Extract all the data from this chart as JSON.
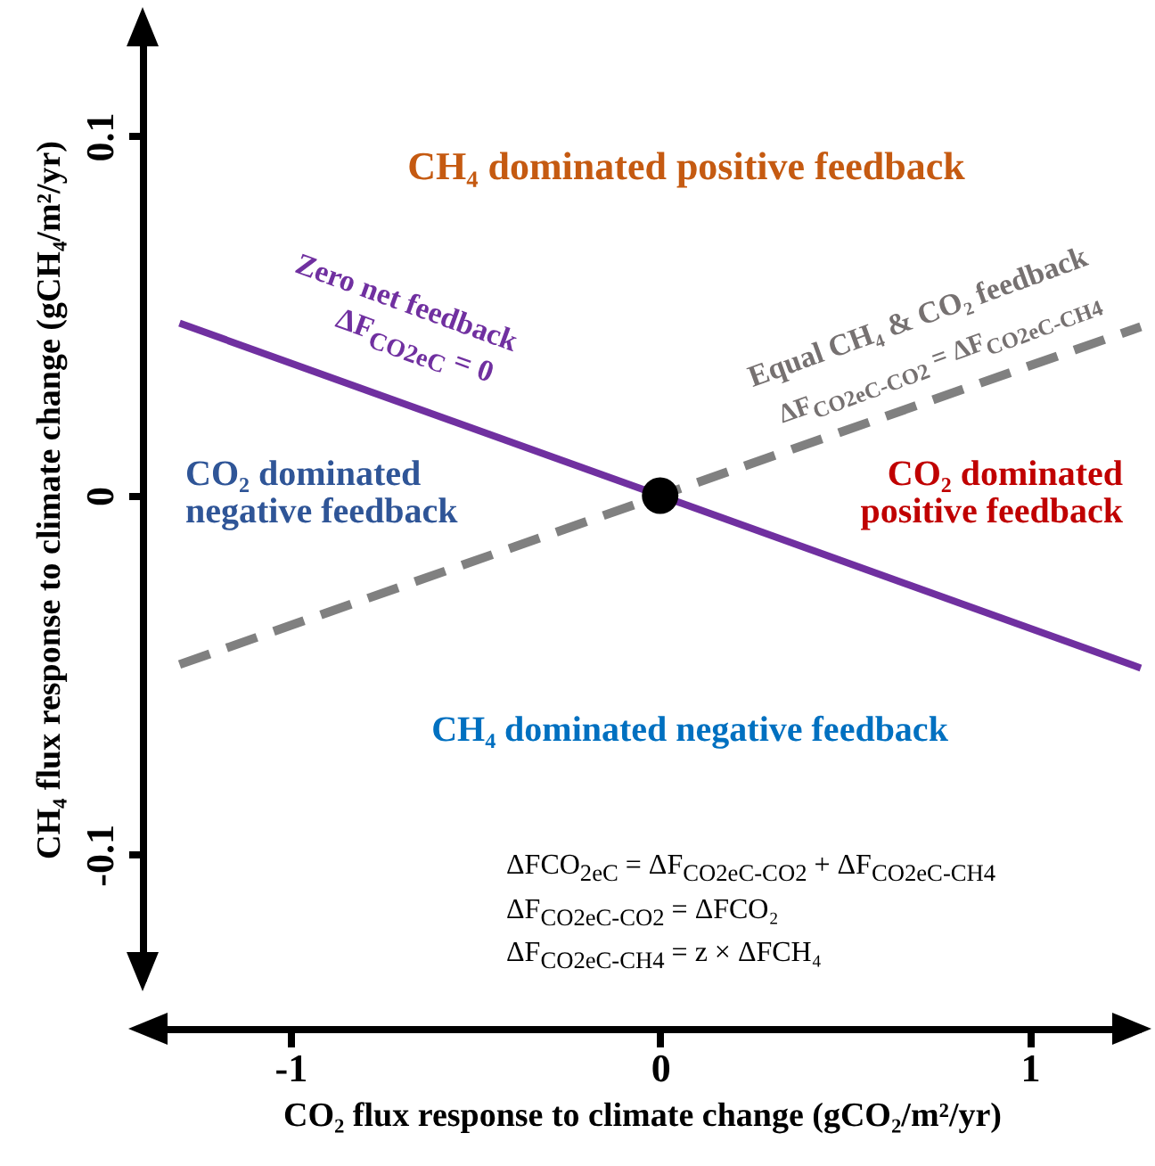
{
  "chart_data": {
    "type": "line",
    "xlabel": "CO₂ flux response to climate change (gCO₂/m²/yr)",
    "ylabel": "CH₄ flux response to climate change (gCH₄/m²/yr)",
    "xlim": [
      -1.4,
      1.3
    ],
    "ylim": [
      -0.135,
      0.133
    ],
    "xticks": [
      -1,
      0,
      1
    ],
    "yticks": [
      -0.1,
      0,
      0.1
    ],
    "grid": false,
    "annotations": [
      "CH₄ dominated positive feedback",
      "Zero net feedback",
      "ΔF$_{CO2eC}$ = 0",
      "Equal CH₄ & CO₂ feedback",
      "ΔF$_{CO2eC-CO2}$ = ΔF$_{CO2eC-CH4}$",
      "CO₂ dominated negative feedback",
      "CO₂ dominated positive feedback",
      "CH₄ dominated negative feedback",
      "ΔFCO$_{2eC}$ = ΔF$_{CO2eC-CO2}$ + ΔF$_{CO2eC-CH4}$",
      "ΔF$_{CO2eC-CO2}$ = ΔFCO₂",
      "ΔF$_{CO2eC-CH4}$ = z × ΔFCH₄"
    ],
    "series": [
      {
        "color": "#7030a0",
        "x": [
          -1.3,
          1.3
        ],
        "values": [
          0.048,
          -0.048
        ],
        "line_style": "solid"
      },
      {
        "color": "#808080",
        "x": [
          -1.3,
          1.3
        ],
        "values": [
          -0.047,
          0.047
        ],
        "line_style": "dashed"
      },
      {
        "type": "scatter",
        "color": "#000000",
        "x": [
          0
        ],
        "values": [
          0
        ],
        "marker": "circle"
      }
    ]
  }
}
